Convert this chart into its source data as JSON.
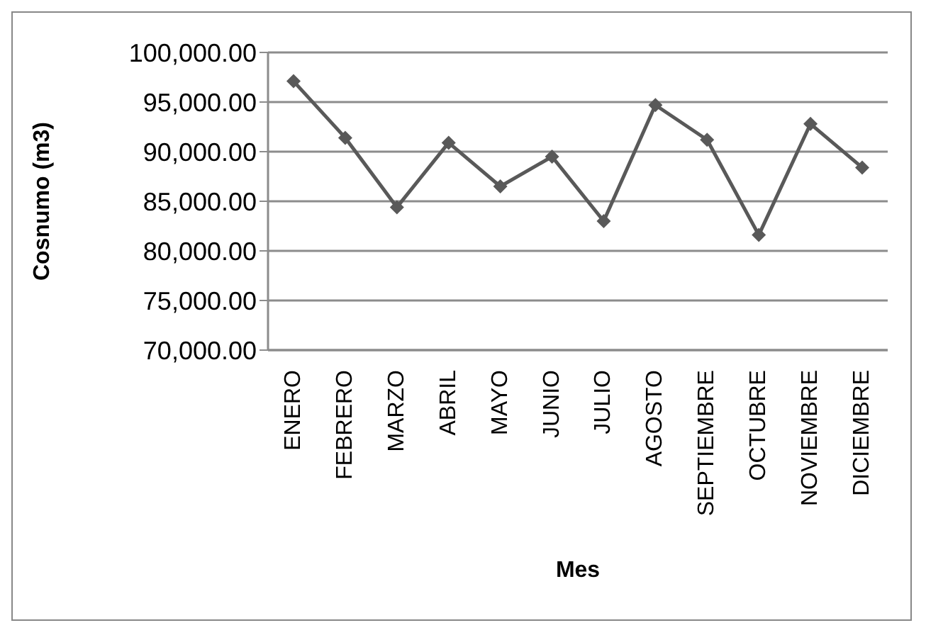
{
  "chart_data": {
    "type": "line",
    "xlabel": "Mes",
    "ylabel": "Cosnumo (m3)",
    "categories": [
      "ENERO",
      "FEBRERO",
      "MARZO",
      "ABRIL",
      "MAYO",
      "JUNIO",
      "JULIO",
      "AGOSTO",
      "SEPTIEMBRE",
      "OCTUBRE",
      "NOVIEMBRE",
      "DICIEMBRE"
    ],
    "series": [
      {
        "color": "#595959",
        "values": [
          97100,
          91400,
          84400,
          90900,
          86500,
          89500,
          83000,
          94700,
          91200,
          81600,
          92800,
          88400
        ]
      }
    ],
    "ylim": [
      70000,
      100000
    ],
    "yticks": [
      {
        "value": 70000,
        "label": "70,000.00"
      },
      {
        "value": 75000,
        "label": "75,000.00"
      },
      {
        "value": 80000,
        "label": "80,000.00"
      },
      {
        "value": 85000,
        "label": "85,000.00"
      },
      {
        "value": 90000,
        "label": "90,000.00"
      },
      {
        "value": 95000,
        "label": "95,000.00"
      },
      {
        "value": 100000,
        "label": "100,000.00"
      }
    ],
    "grid": "y",
    "marker": "diamond",
    "line_style": "solid"
  }
}
